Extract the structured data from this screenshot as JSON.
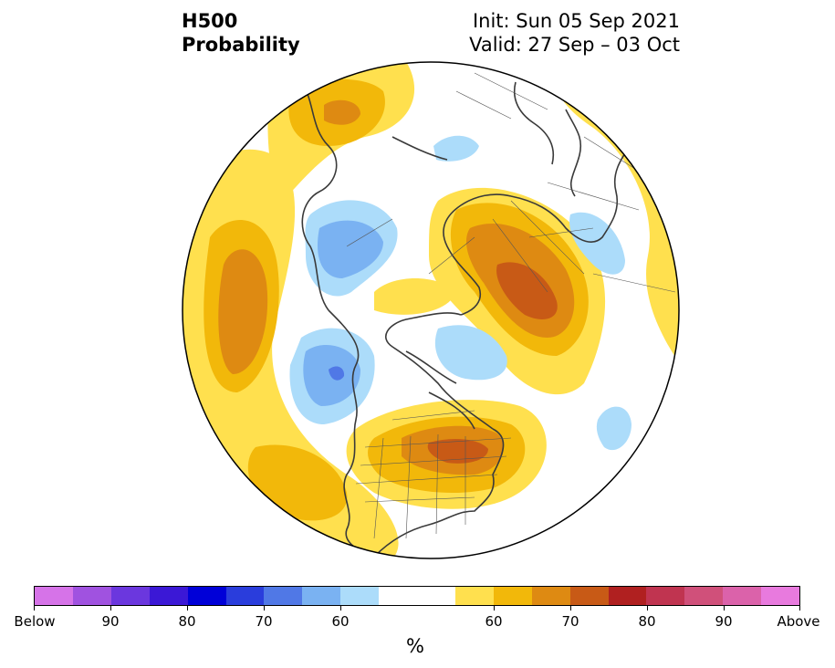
{
  "header": {
    "left_line1": "H500",
    "left_line2": "Probability",
    "right_line1": "Init: Sun 05 Sep 2021",
    "right_line2": "Valid: 27 Sep – 03 Oct"
  },
  "colorbar": {
    "units": "%",
    "colors": [
      "#d673e8",
      "#a052e0",
      "#6b37de",
      "#3b18d6",
      "#0000d8",
      "#2a3ddc",
      "#5078e6",
      "#7ab2f2",
      "#acdcfa",
      "#ffffff",
      "#ffe04e",
      "#f2b80a",
      "#de8a12",
      "#c85a16",
      "#b02020",
      "#c03450",
      "#d0507a",
      "#db62aa",
      "#e87ade"
    ],
    "labels": [
      "Below",
      "90",
      "80",
      "70",
      "60",
      "60",
      "70",
      "80",
      "90",
      "Above"
    ]
  }
}
